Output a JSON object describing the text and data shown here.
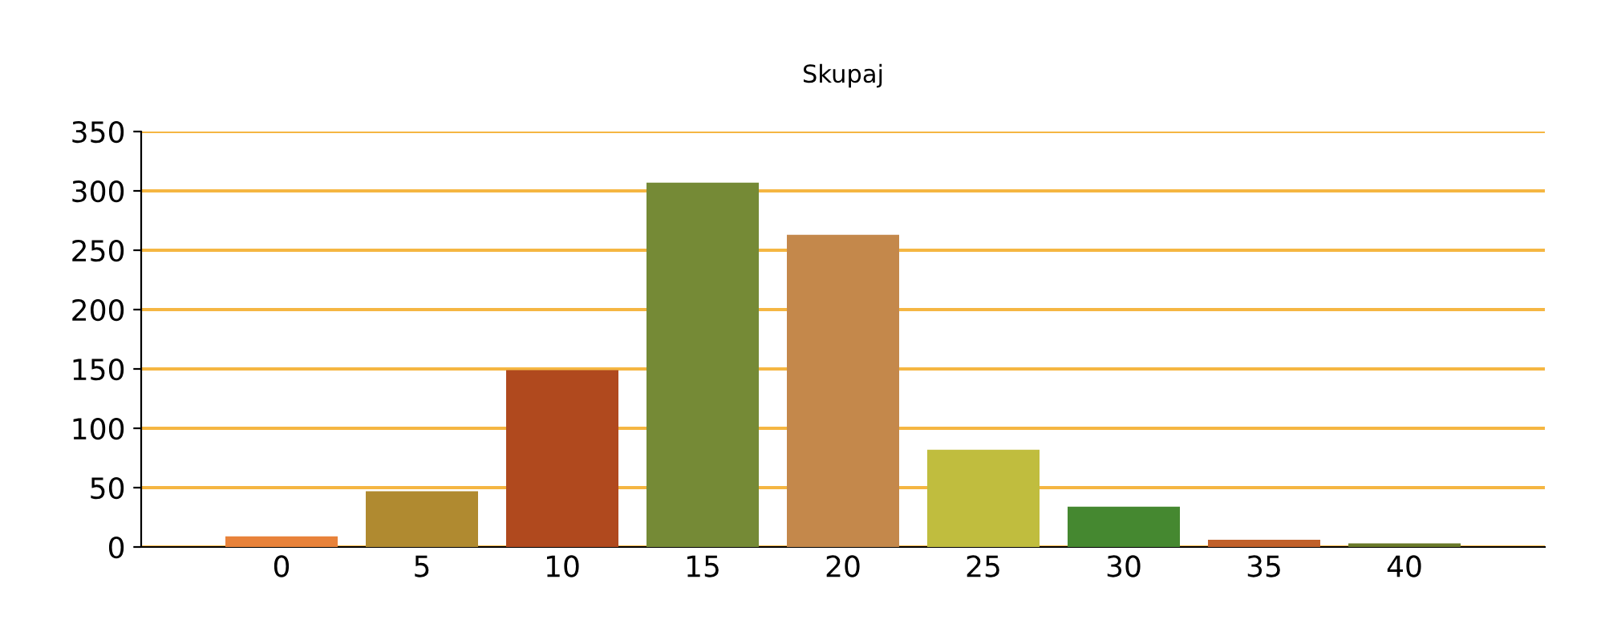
{
  "chart_data": {
    "type": "bar",
    "title": "Skupaj",
    "categories": [
      "0",
      "5",
      "10",
      "15",
      "20",
      "25",
      "30",
      "35",
      "40"
    ],
    "values": [
      9,
      47,
      149,
      307,
      263,
      82,
      34,
      6,
      3
    ],
    "colors": [
      "#e8823a",
      "#b08a30",
      "#b0491e",
      "#758a36",
      "#c4884b",
      "#c0bd3e",
      "#458830",
      "#c0602a",
      "#6a7a2a"
    ],
    "ylim": [
      0,
      350
    ],
    "yticks": [
      0,
      50,
      100,
      150,
      200,
      250,
      300,
      350
    ],
    "grid": "y",
    "legend": false
  }
}
